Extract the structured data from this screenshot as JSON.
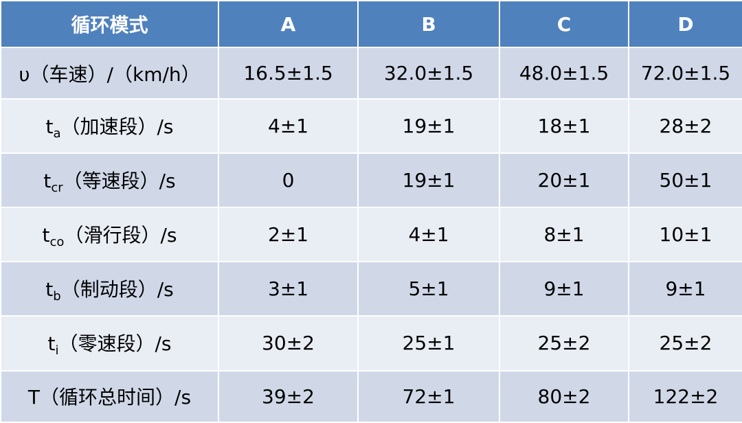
{
  "table": {
    "header": [
      "循环模式",
      "A",
      "B",
      "C",
      "D"
    ],
    "rows": [
      {
        "label": {
          "symbol": "υ",
          "text": "（车速）/（km/h）"
        },
        "cells": [
          "16.5±1.5",
          "32.0±1.5",
          "48.0±1.5",
          "72.0±1.5"
        ]
      },
      {
        "label": {
          "symbol": "t",
          "subscript": "a",
          "text": "（加速段）/s"
        },
        "cells": [
          "4±1",
          "19±1",
          "18±1",
          "28±2"
        ]
      },
      {
        "label": {
          "symbol": "t",
          "subscript": "cr",
          "text": "（等速段）/s"
        },
        "cells": [
          "0",
          "19±1",
          "20±1",
          "50±1"
        ]
      },
      {
        "label": {
          "symbol": "t",
          "subscript": "co",
          "text": "（滑行段）/s"
        },
        "cells": [
          "2±1",
          "4±1",
          "8±1",
          "10±1"
        ]
      },
      {
        "label": {
          "symbol": "t",
          "subscript": "b",
          "text": "（制动段）/s"
        },
        "cells": [
          "3±1",
          "5±1",
          "9±1",
          "9±1"
        ]
      },
      {
        "label": {
          "symbol": "t",
          "subscript": "i",
          "text": "（零速段）/s"
        },
        "cells": [
          "30±2",
          "25±1",
          "25±2",
          "25±2"
        ]
      },
      {
        "label": {
          "symbol": "T",
          "text": "（循环总时间）/s"
        },
        "cells": [
          "39±2",
          "72±1",
          "80±2",
          "122±2"
        ]
      }
    ]
  }
}
